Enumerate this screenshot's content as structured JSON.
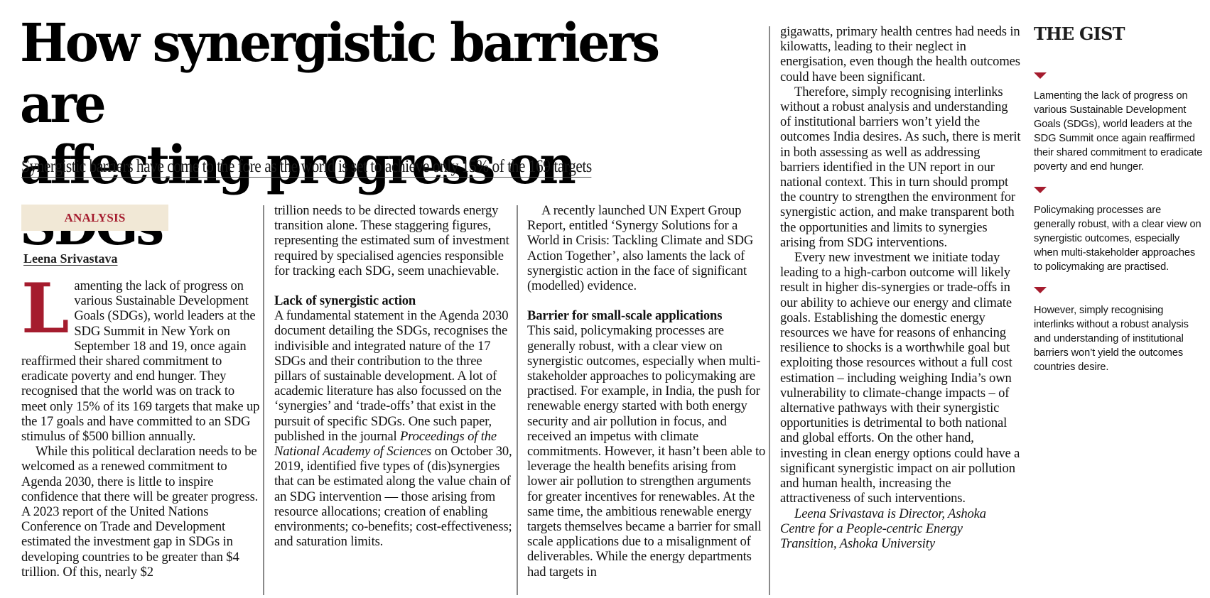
{
  "article": {
    "headline": "How synergistic barriers are affecting progress on SDGs",
    "headline_line1": "How synergistic barriers are",
    "headline_line2": "affecting progress on SDGs",
    "subheadline": "Synergistic barriers have come to the fore as the world is set to achieve only 15% of the 169 targets",
    "kicker": "ANALYSIS",
    "byline": "Leena Srivastava",
    "accent_color": "#A51C2E",
    "kicker_bg_color": "#F1E8D6",
    "drop_cap": "L",
    "col1": {
      "p1": "amenting the lack of progress on various Sustainable Development Goals (SDGs), world leaders at the SDG Summit in New York on September 18 and 19, once again reaffirmed their shared commitment to eradicate poverty and end hunger. They recognised that the world was on track to meet only 15% of its 169 targets that make up the 17 goals and have committed to an SDG stimulus of $500 billion annually.",
      "p2": "While this political declaration needs to be welcomed as a renewed commitment to Agenda 2030, there is little to inspire confidence that there will be greater progress. A 2023 report of the United Nations Conference on Trade and Development estimated the investment gap in SDGs in developing countries to be greater than $4 trillion. Of this, nearly $2"
    },
    "col2": {
      "p1": "trillion needs to be directed towards energy transition alone. These staggering figures, representing the estimated sum of investment required by specialised agencies responsible for tracking each SDG, seem unachievable.",
      "subhead": "Lack of synergistic action",
      "p2_a": "A fundamental statement in the Agenda 2030 document detailing the SDGs, recognises the indivisible and integrated nature of the 17 SDGs and their contribution to the three pillars of sustainable development. A lot of academic literature has also focussed on the ‘synergies’ and ‘trade-offs’ that exist in the pursuit of specific SDGs. One such paper, published in the journal ",
      "p2_journal": "Proceedings of the National Academy of Sciences",
      "p2_b": " on October 30, 2019, identified five types of (dis)synergies that can be estimated along the value chain of an SDG intervention — those arising from resource allocations; creation of enabling environments; co-benefits; cost-effectiveness; and saturation limits."
    },
    "col3": {
      "p1": "A recently launched UN Expert Group Report, entitled ‘Synergy Solutions for a World in Crisis: Tackling Climate and SDG Action Together’, also laments the lack of synergistic action in the face of significant (modelled) evidence.",
      "subhead": "Barrier for small-scale applications",
      "p2": "This said, policymaking processes are generally robust, with a clear view on synergistic outcomes, especially when multi-stakeholder approaches to policymaking are practised. For example, in India, the push for renewable energy started with both energy security and air pollution in focus, and received an impetus with climate commitments. However, it hasn’t been able to leverage the health benefits arising from lower air pollution to strengthen arguments for greater incentives for renewables. At the same time, the ambitious renewable energy targets themselves became a barrier for small scale applications due to a misalignment of deliverables. While the energy departments had targets in"
    },
    "col4": {
      "p1": "gigawatts, primary health centres had needs in kilowatts, leading to their neglect in energisation, even though the health outcomes could have been significant.",
      "p2": "Therefore, simply recognising interlinks without a robust analysis and understanding of institutional barriers won’t yield the outcomes India desires. As such, there is merit in both assessing as well as addressing barriers identified in the UN report in our national context. This in turn should prompt the country to strengthen the environment for synergistic action, and make transparent both the opportunities and limits to synergies arising from SDG interventions.",
      "p3": "Every new investment we initiate today leading to a high-carbon outcome will likely result in higher dis-synergies or trade-offs in our ability to achieve our energy and climate goals. Establishing the domestic energy resources we have for reasons of enhancing resilience to shocks is a worthwhile goal but exploiting those resources without a full cost estimation – including weighing India’s own vulnerability to climate-change impacts – of alternative pathways with their synergistic opportunities is detrimental to both national and global efforts. On the other hand, investing in clean energy options could have a significant synergistic impact on air pollution and human health, increasing the attractiveness of such interventions.",
      "author_note": "Leena Srivastava is Director, Ashoka Centre for a People-centric Energy Transition, Ashoka University"
    }
  },
  "gist": {
    "title": "THE GIST",
    "bullet_icon": "red-triangle-down-icon",
    "items": [
      "Lamenting the lack of progress on various Sustainable Development Goals (SDGs), world leaders at the SDG Summit once again reaffirmed their shared commitment to eradicate poverty and end hunger.",
      "Policymaking processes are generally robust, with a clear view on synergistic outcomes, especially when multi-stakeholder approaches to policymaking are practised.",
      "However, simply recognising interlinks without a robust analysis and understanding of institutional barriers won’t yield the outcomes countries desire."
    ]
  }
}
